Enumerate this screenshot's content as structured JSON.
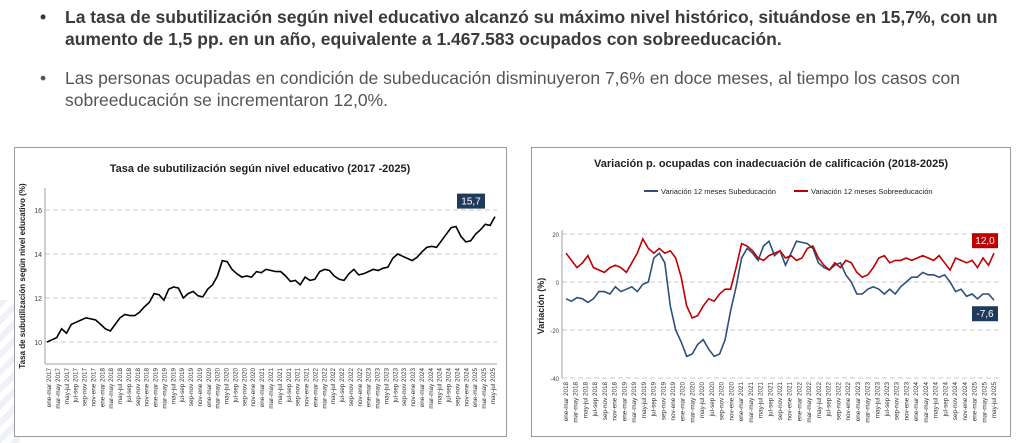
{
  "bullets": [
    {
      "text": "La tasa de subutilización según nivel educativo alcanzó su máximo nivel histórico, situándose en 15,7%, con un aumento de 1,5 pp. en un año, equivalente a 1.467.583 ocupados con sobreeducación."
    },
    {
      "text": "Las personas ocupadas en condición de subeducación disminuyeron 7,6% en doce meses, al tiempo los casos con sobreeducación se incrementaron 12,0%."
    }
  ],
  "colors": {
    "navy": "#1f3b5c",
    "blue": "#2e4f7a",
    "red": "#c00000",
    "black": "#000000"
  },
  "chart_data": [
    {
      "type": "line",
      "title": "Tasa de subutilización según nivel educativo (2017 -2025)",
      "ylabel": "Tasa de subutilización según nivel educativo (%)",
      "ylim": [
        9,
        17
      ],
      "yticks": [
        10,
        12,
        14,
        16
      ],
      "last_label": "15,7",
      "series": [
        {
          "values": [
            10.0,
            10.1,
            10.2,
            10.6,
            10.4,
            10.8,
            10.9,
            11.0,
            11.1,
            11.05,
            11.0,
            10.8,
            10.6,
            10.5,
            10.8,
            11.1,
            11.25,
            11.2,
            11.2,
            11.35,
            11.6,
            11.8,
            12.2,
            12.15,
            11.9,
            12.4,
            12.5,
            12.45,
            12.0,
            12.2,
            12.3,
            12.1,
            12.05,
            12.4,
            12.6,
            13.0,
            13.7,
            13.65,
            13.3,
            13.1,
            12.95,
            13.0,
            12.95,
            13.2,
            13.15,
            13.3,
            13.25,
            13.2,
            13.2,
            13.0,
            12.75,
            12.8,
            12.6,
            12.95,
            12.8,
            12.85,
            13.2,
            13.3,
            13.25,
            13.0,
            12.85,
            12.8,
            13.1,
            13.3,
            13.05,
            13.1,
            13.2,
            13.3,
            13.25,
            13.35,
            13.4,
            13.8,
            14.0,
            13.9,
            13.8,
            13.7,
            13.85,
            14.1,
            14.3,
            14.35,
            14.3,
            14.6,
            14.9,
            15.2,
            15.25,
            14.8,
            14.55,
            14.6,
            14.9,
            15.1,
            15.35,
            15.3,
            15.7
          ]
        }
      ],
      "x_labels": [
        "ene-mar 2017",
        "mar-may 2017",
        "may-jul 2017",
        "jul-sep 2017",
        "sep-nov 2017",
        "nov-ene 2017",
        "ene-mar 2018",
        "mar-may 2018",
        "may-jul 2018",
        "jul-sep 2018",
        "sep-nov 2018",
        "nov-ene 2018",
        "ene-mar 2019",
        "mar-may 2019",
        "may-jul 2019",
        "jul-sep 2019",
        "sep-nov 2019",
        "nov-ene 2019",
        "ene-mar 2020",
        "mar-may 2020",
        "may-jul 2020",
        "jul-sep 2020",
        "sep-nov 2020",
        "nov-ene 2020",
        "ene-mar 2021",
        "mar-may 2021",
        "may-jul 2021",
        "jul-sep 2021",
        "sep-nov 2021",
        "nov-ene 2021",
        "ene-mar 2022",
        "mar-may 2022",
        "may-jul 2022",
        "jul-sep 2022",
        "sep-nov 2022",
        "nov-ene 2022",
        "ene-mar 2023",
        "mar-may 2023",
        "may-jul 2023",
        "jul-sep 2023",
        "sep-nov 2023",
        "nov-ene 2023",
        "ene-mar 2024",
        "mar-may 2024",
        "may-jul 2024",
        "jul-sep 2024",
        "sep-nov 2024",
        "nov-ene 2024",
        "ene-mar 2025",
        "mar-may 2025",
        "may-jul 2025"
      ],
      "grid": true
    },
    {
      "type": "line",
      "title": "Variación p. ocupadas con inadecuación de calificación (2018-2025)",
      "ylabel": "Variación (%)",
      "ylim": [
        -40,
        20
      ],
      "yticks": [
        20,
        0,
        -20,
        -40
      ],
      "legend": "top",
      "series": [
        {
          "name": "Variación 12 meses Subeducación",
          "values": [
            -7,
            -8,
            -6.5,
            -7,
            -8.5,
            -7,
            -4,
            -4,
            -5,
            -2,
            -4,
            -3,
            -2,
            -4,
            -1,
            0,
            10,
            12,
            8,
            -10,
            -20,
            -25,
            -31,
            -30,
            -26,
            -24,
            -28,
            -31,
            -30,
            -24,
            -12,
            -2,
            10,
            14,
            12,
            9,
            15,
            17,
            11,
            13,
            7,
            12,
            17,
            16.5,
            16,
            14,
            8,
            6,
            5,
            7,
            8,
            3,
            0,
            -5,
            -5,
            -3,
            -2,
            -3,
            -5,
            -3,
            -5,
            -2,
            0,
            2,
            2,
            4,
            3,
            3,
            2,
            3,
            0,
            -4,
            -3,
            -6,
            -5,
            -7,
            -5,
            -5,
            -7.6
          ]
        },
        {
          "name": "Variación 12 meses Sobreeducación",
          "values": [
            12,
            9,
            6,
            8,
            11,
            6,
            5,
            4,
            6,
            7,
            6,
            4,
            8,
            12,
            18,
            14,
            12,
            14,
            12,
            13,
            10,
            2,
            -10,
            -15,
            -14,
            -10,
            -7,
            -8,
            -5,
            -3,
            -3,
            6,
            16,
            15,
            13,
            10,
            9,
            11,
            12,
            13,
            10,
            11,
            9,
            10,
            14,
            15,
            10,
            7,
            5,
            8,
            6,
            9,
            8,
            4,
            2,
            3,
            6,
            10,
            11,
            8,
            9,
            9,
            10,
            9,
            10,
            11,
            10,
            9,
            11,
            8,
            5,
            10,
            9,
            8,
            9,
            6,
            10,
            7,
            12.0
          ]
        }
      ],
      "end_labels": {
        "Subeducación": "-7,6",
        "Sobreeducación": "12,0"
      },
      "x_labels": [
        "ene-mar 2018",
        "may-jul 2018",
        "sep-nov 2018",
        "ene-mar 2019",
        "may-jul 2019",
        "sep-nov 2019",
        "ene-mar 2020",
        "may-jul 2020",
        "sep-nov 2020",
        "ene-mar 2021",
        "may-jul 2021",
        "sep-nov 2021",
        "ene-mar 2022",
        "may-jul 2022",
        "sep-nov 2022",
        "ene-mar 2023",
        "may-jul 2023",
        "sep-nov 2023",
        "ene-mar 2024",
        "may-jul 2024",
        "sep-nov 2024",
        "ene-mar 2025",
        "may-jul 2025"
      ],
      "x_labels_show": [
        "ene-mar 2018",
        "mar-may 2018",
        "may-jul 2018",
        "jul-sep 2018",
        "sep-nov 2018",
        "nov-ene 2018",
        "ene-mar 2019",
        "mar-may 2019",
        "may-jul 2019",
        "jul-sep 2019",
        "sep-nov 2019",
        "nov-ene 2019",
        "ene-mar 2020",
        "mar-may 2020",
        "may-jul 2020",
        "jul-sep 2020",
        "sep-nov 2020",
        "nov-ene 2020",
        "ene-mar 2021",
        "mar-may 2021",
        "may-jul 2021",
        "jul-sep 2021",
        "sep-nov 2021",
        "nov-ene 2021",
        "ene-mar 2022",
        "mar-may 2022",
        "may-jul 2022",
        "jul-sep 2022",
        "sep-nov 2022",
        "nov-ene 2022",
        "ene-mar 2023",
        "mar-may 2023",
        "may-jul 2023",
        "jul-sep 2023",
        "sep-nov 2023",
        "nov-ene 2023",
        "ene-mar 2024",
        "mar-may 2024",
        "may-jul 2024",
        "jul-sep 2024",
        "sep-nov 2024",
        "nov-ene 2024",
        "ene-mar 2025",
        "mar-may 2025",
        "may-jul 2025"
      ],
      "grid": true
    }
  ]
}
